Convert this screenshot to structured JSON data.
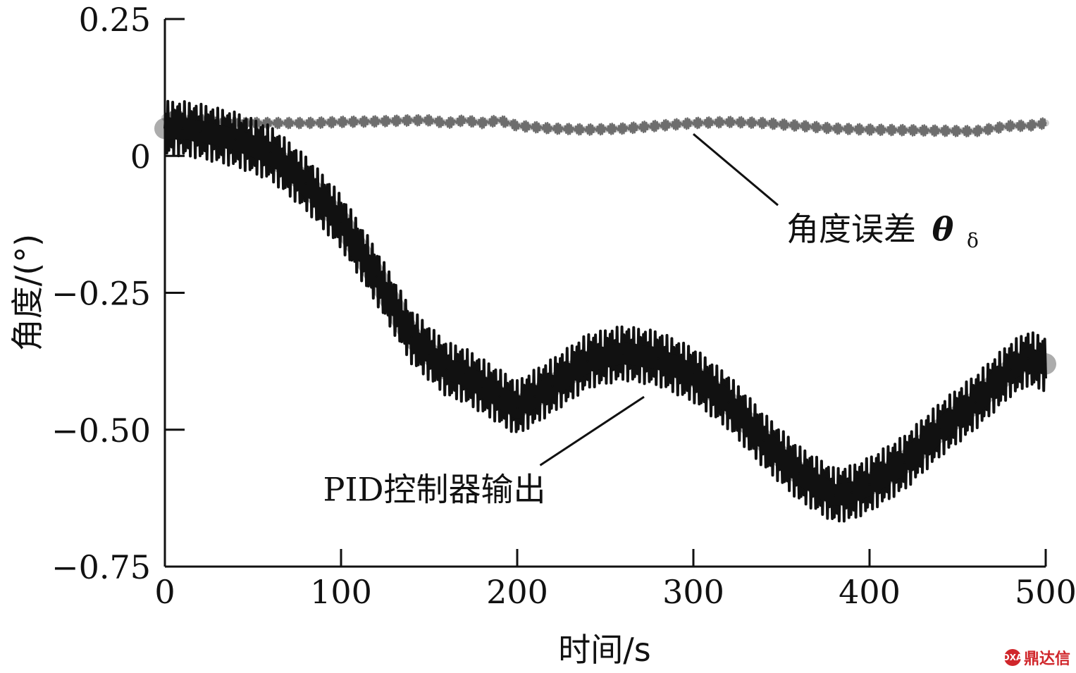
{
  "chart_data": {
    "type": "line",
    "xlabel": "时间/s",
    "ylabel": "角度/(°)",
    "xlim": [
      0,
      500
    ],
    "ylim": [
      -0.75,
      0.25
    ],
    "xticks": [
      0,
      100,
      200,
      300,
      400,
      500
    ],
    "xtick_labels": [
      "0",
      "100",
      "200",
      "300",
      "400",
      "500"
    ],
    "yticks": [
      0.25,
      0,
      -0.25,
      -0.5,
      -0.75
    ],
    "ytick_labels": [
      "0.25",
      "0",
      "−0.25",
      "−0.50",
      "−0.75"
    ],
    "grid": false,
    "series": [
      {
        "name": "角度误差 θδ",
        "color": "#6e6e6e",
        "x": [
          0,
          10,
          20,
          40,
          60,
          80,
          100,
          120,
          140,
          150,
          160,
          170,
          180,
          190,
          200,
          220,
          240,
          260,
          280,
          300,
          320,
          340,
          360,
          380,
          400,
          420,
          440,
          460,
          470,
          480,
          490,
          500
        ],
        "y": [
          0.07,
          0.07,
          0.065,
          0.06,
          0.06,
          0.06,
          0.062,
          0.063,
          0.065,
          0.065,
          0.06,
          0.065,
          0.06,
          0.065,
          0.055,
          0.05,
          0.048,
          0.05,
          0.055,
          0.06,
          0.062,
          0.06,
          0.055,
          0.05,
          0.048,
          0.047,
          0.046,
          0.045,
          0.05,
          0.055,
          0.055,
          0.06
        ],
        "band": 0.02
      },
      {
        "name": "PID控制器输出",
        "color": "#111111",
        "x": [
          0,
          10,
          20,
          40,
          60,
          80,
          100,
          120,
          140,
          150,
          160,
          170,
          180,
          190,
          200,
          210,
          220,
          240,
          260,
          280,
          300,
          320,
          340,
          360,
          380,
          390,
          400,
          420,
          440,
          460,
          480,
          490,
          500
        ],
        "y": [
          0.05,
          0.05,
          0.045,
          0.03,
          0.005,
          -0.05,
          -0.12,
          -0.22,
          -0.33,
          -0.36,
          -0.39,
          -0.4,
          -0.42,
          -0.44,
          -0.46,
          -0.44,
          -0.42,
          -0.375,
          -0.36,
          -0.37,
          -0.4,
          -0.45,
          -0.52,
          -0.58,
          -0.62,
          -0.615,
          -0.6,
          -0.56,
          -0.5,
          -0.45,
          -0.39,
          -0.37,
          -0.38
        ],
        "band": 0.1
      }
    ],
    "annotations": [
      {
        "text": "角度误差",
        "symbol": "θ",
        "subscript": "δ",
        "target": [
          300,
          0.04
        ],
        "label_at": [
          348,
          -0.09
        ]
      },
      {
        "text": "PID控制器输出",
        "target": [
          272,
          -0.44
        ],
        "label_at": [
          213,
          -0.565
        ]
      }
    ]
  },
  "watermark": {
    "logo": "DXA",
    "text": "鼎达信"
  }
}
